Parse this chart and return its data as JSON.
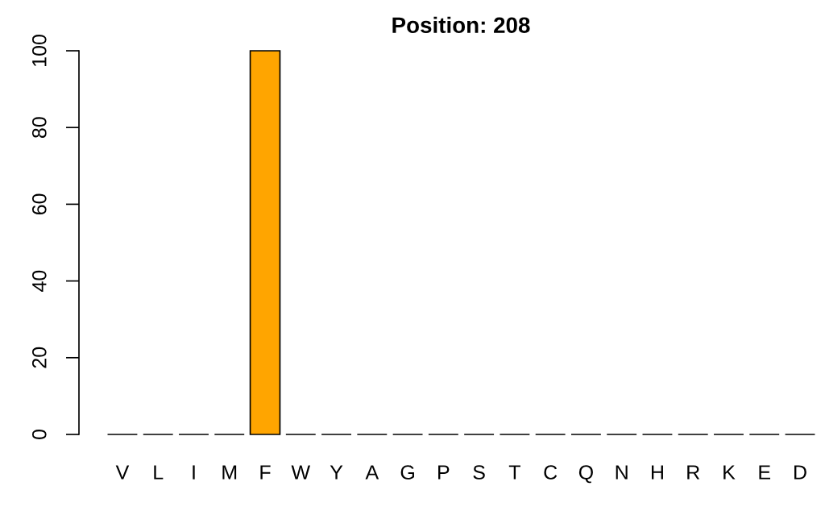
{
  "chart_data": {
    "type": "bar",
    "title": "Position: 208",
    "categories": [
      "V",
      "L",
      "I",
      "M",
      "F",
      "W",
      "Y",
      "A",
      "G",
      "P",
      "S",
      "T",
      "C",
      "Q",
      "N",
      "H",
      "R",
      "K",
      "E",
      "D"
    ],
    "values": [
      0,
      0,
      0,
      0,
      100,
      0,
      0,
      0,
      0,
      0,
      0,
      0,
      0,
      0,
      0,
      0,
      0,
      0,
      0,
      0
    ],
    "color": "#ffa500",
    "ylim": [
      0,
      100
    ],
    "yticks": [
      0,
      20,
      40,
      60,
      80,
      100
    ],
    "grid": false,
    "legend": false
  }
}
